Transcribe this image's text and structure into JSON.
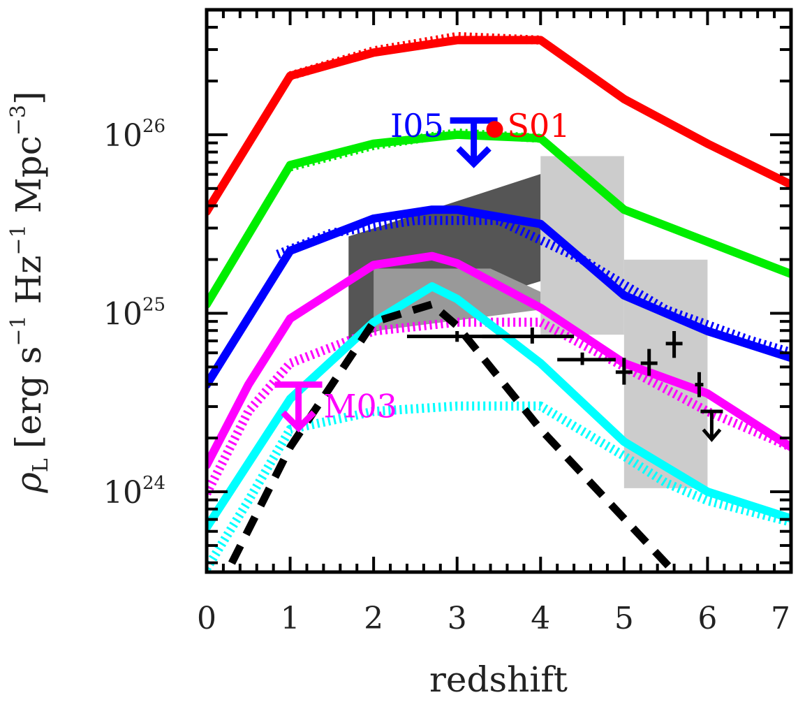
{
  "chart_data": {
    "type": "line",
    "title": "",
    "xlabel": "redshift",
    "ylabel": {
      "base": "ρ",
      "sub": "L",
      "rest": "[erg s",
      "exp1": "−1",
      "hz": " Hz",
      "exp2": "−1",
      "mpc": " Mpc",
      "exp3": "−3",
      "close": "]"
    },
    "xlim": [
      0,
      7
    ],
    "ylim_log10": [
      23.55,
      26.7
    ],
    "log_y": true,
    "x_ticks": [
      "0",
      "1",
      "2",
      "3",
      "4",
      "5",
      "6",
      "7"
    ],
    "y_ticks": [
      {
        "base": "10",
        "exp": "24",
        "log": 24
      },
      {
        "base": "10",
        "exp": "25",
        "log": 25
      },
      {
        "base": "10",
        "exp": "26",
        "log": 26
      }
    ],
    "colors": {
      "red": "#ff0000",
      "green": "#00ee00",
      "blue": "#0000ff",
      "magenta": "#ff00ff",
      "cyan": "#00ffff",
      "black": "#000000",
      "shade_dark": "#555555",
      "shade_mid": "#999999",
      "shade_light": "#cccccc"
    },
    "series": [
      {
        "color": "red",
        "style": "solid",
        "x": [
          0,
          1,
          2,
          3,
          4,
          5,
          6,
          7
        ],
        "log_y": [
          25.57,
          26.33,
          26.46,
          26.53,
          26.53,
          26.2,
          25.95,
          25.72
        ]
      },
      {
        "color": "red",
        "style": "dotted",
        "x": [
          1,
          2,
          3,
          4
        ],
        "log_y": [
          26.33,
          26.47,
          26.55,
          26.53
        ]
      },
      {
        "color": "green",
        "style": "solid",
        "x": [
          0,
          1,
          2,
          3,
          4,
          5,
          6,
          7
        ],
        "log_y": [
          25.05,
          25.83,
          25.95,
          26.0,
          25.98,
          25.58,
          25.4,
          25.22
        ]
      },
      {
        "color": "green",
        "style": "dotted",
        "x": [
          1,
          2,
          3,
          4
        ],
        "log_y": [
          25.82,
          25.94,
          26.01,
          25.98
        ]
      },
      {
        "color": "blue",
        "style": "solid",
        "x": [
          0,
          1,
          2,
          2.7,
          3,
          4,
          5,
          6,
          7
        ],
        "log_y": [
          24.6,
          25.35,
          25.53,
          25.58,
          25.58,
          25.5,
          25.1,
          24.9,
          24.75
        ]
      },
      {
        "color": "blue",
        "style": "dotted",
        "x": [
          0.85,
          1.5,
          2.5,
          3.5,
          4.5,
          5.5,
          6.5,
          7
        ],
        "log_y": [
          25.33,
          25.45,
          25.52,
          25.52,
          25.3,
          25.02,
          24.85,
          24.78
        ]
      },
      {
        "color": "magenta",
        "style": "solid",
        "x": [
          0,
          0.5,
          1,
          2,
          2.7,
          3,
          4,
          5,
          6,
          7
        ],
        "log_y": [
          24.15,
          24.6,
          24.97,
          25.27,
          25.32,
          25.28,
          25.03,
          24.72,
          24.55,
          24.25
        ]
      },
      {
        "color": "magenta",
        "style": "dotted",
        "x": [
          0,
          0.5,
          1,
          2,
          3,
          4,
          5,
          6,
          7
        ],
        "log_y": [
          23.99,
          24.45,
          24.72,
          24.9,
          24.95,
          24.95,
          24.7,
          24.45,
          24.25
        ]
      },
      {
        "color": "cyan",
        "style": "solid",
        "x": [
          0,
          1,
          2,
          2.7,
          3,
          4,
          5,
          6,
          7
        ],
        "log_y": [
          23.8,
          24.52,
          24.95,
          25.15,
          25.08,
          24.72,
          24.28,
          24.0,
          23.85
        ]
      },
      {
        "color": "cyan",
        "style": "dotted",
        "x": [
          0,
          0.5,
          1,
          2,
          3,
          4,
          5,
          5.5,
          6,
          7
        ],
        "log_y": [
          23.57,
          23.95,
          24.35,
          24.45,
          24.48,
          24.48,
          24.2,
          24.05,
          23.95,
          23.83
        ]
      },
      {
        "color": "black",
        "style": "dashed",
        "x": [
          0.3,
          1,
          2,
          2.7,
          3,
          4,
          5,
          5.6
        ],
        "log_y": [
          23.6,
          24.25,
          24.95,
          25.05,
          24.93,
          24.35,
          23.85,
          23.55
        ]
      }
    ],
    "shaded_regions": [
      {
        "color": "shade_dark",
        "polygon": [
          [
            1.7,
            25.43
          ],
          [
            4.0,
            25.78
          ],
          [
            4.0,
            25.18
          ],
          [
            1.7,
            24.85
          ]
        ]
      },
      {
        "color": "shade_mid",
        "polygon": [
          [
            2.0,
            25.25
          ],
          [
            3.4,
            25.25
          ],
          [
            4.0,
            25.12
          ],
          [
            4.0,
            25.02
          ],
          [
            2.0,
            24.9
          ]
        ]
      },
      {
        "color": "shade_light",
        "polygon": [
          [
            4.0,
            25.88
          ],
          [
            5.0,
            25.88
          ],
          [
            5.0,
            24.88
          ],
          [
            4.0,
            24.88
          ]
        ]
      },
      {
        "color": "shade_light",
        "polygon": [
          [
            5.0,
            25.3
          ],
          [
            6.0,
            25.3
          ],
          [
            6.0,
            24.02
          ],
          [
            5.0,
            24.02
          ]
        ]
      }
    ],
    "error_points": [
      {
        "x": 3.0,
        "log_y": 24.87,
        "xerr": [
          2.4,
          3.5
        ],
        "yerr": [
          24.84,
          24.9
        ]
      },
      {
        "x": 3.9,
        "log_y": 24.87,
        "xerr": [
          3.3,
          4.4
        ],
        "yerr": [
          24.83,
          24.92
        ]
      },
      {
        "x": 4.5,
        "log_y": 24.74,
        "xerr": [
          4.2,
          4.9
        ],
        "yerr": [
          24.71,
          24.78
        ]
      },
      {
        "x": 5.0,
        "log_y": 24.67,
        "xerr": [
          4.9,
          5.1
        ],
        "yerr": [
          24.6,
          24.75
        ]
      },
      {
        "x": 5.3,
        "log_y": 24.72,
        "xerr": [
          5.2,
          5.4
        ],
        "yerr": [
          24.65,
          24.8
        ]
      },
      {
        "x": 5.6,
        "log_y": 24.83,
        "xerr": [
          5.5,
          5.7
        ],
        "yerr": [
          24.75,
          24.9
        ]
      },
      {
        "x": 5.9,
        "log_y": 24.6,
        "xerr": [
          5.85,
          5.95
        ],
        "yerr": [
          24.53,
          24.67
        ]
      }
    ],
    "upper_limits": [
      {
        "color": "blue",
        "x": 3.2,
        "log_y": 26.08
      },
      {
        "color": "magenta",
        "x": 1.1,
        "log_y": 24.6
      },
      {
        "color": "black",
        "x": 6.05,
        "log_y": 24.45
      }
    ],
    "points": [
      {
        "color": "red",
        "x": 3.45,
        "log_y": 26.03
      }
    ],
    "annotations": [
      {
        "text": "I05",
        "color": "blue",
        "x": 2.2,
        "log_y": 26.05
      },
      {
        "text": "S01",
        "color": "red",
        "x": 3.6,
        "log_y": 26.05
      },
      {
        "text": "M03",
        "color": "magenta",
        "x": 1.4,
        "log_y": 24.48
      }
    ]
  }
}
